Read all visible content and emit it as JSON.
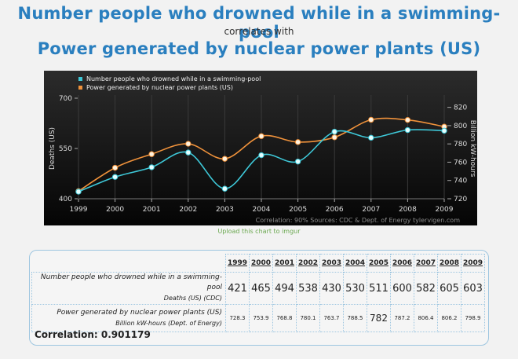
{
  "header": {
    "title1": "Number people who drowned while in a swimming-pool",
    "subtitle": "correlates with",
    "title2": "Power generated by nuclear power plants (US)"
  },
  "chart_data": {
    "type": "line",
    "x": [
      1999,
      2000,
      2001,
      2002,
      2003,
      2004,
      2005,
      2006,
      2007,
      2008,
      2009
    ],
    "series": [
      {
        "name": "Number people who drowned while in a swimming-pool",
        "axis": "left",
        "color": "#3ec8d8",
        "values": [
          421,
          465,
          494,
          538,
          430,
          530,
          511,
          600,
          582,
          605,
          603
        ]
      },
      {
        "name": "Power generated by nuclear power plants (US)",
        "axis": "right",
        "color": "#f0923b",
        "values": [
          728.3,
          753.9,
          768.8,
          780.1,
          763.7,
          788.5,
          782,
          787.2,
          806.4,
          806.2,
          798.9
        ]
      }
    ],
    "ylabel_left": "Deaths (US)",
    "ylabel_right": "Billion kW-hours",
    "ylim_left": [
      400,
      700
    ],
    "yticks_left": [
      400,
      550,
      700
    ],
    "ylim_right": [
      720,
      830
    ],
    "yticks_right": [
      720,
      740,
      760,
      780,
      800,
      820
    ],
    "grid": "vertical",
    "legend": "top-left",
    "footer": "Correlation: 90%   Sources: CDC & Dept. of Energy   tylervigen.com"
  },
  "upload_link": "Upload this chart to imgur",
  "table": {
    "years": [
      "1999",
      "2000",
      "2001",
      "2002",
      "2003",
      "2004",
      "2005",
      "2006",
      "2007",
      "2008",
      "2009"
    ],
    "row1": {
      "label": "Number people who drowned while in a swimming-pool",
      "sub": "Deaths (US) (CDC)",
      "values": [
        "421",
        "465",
        "494",
        "538",
        "430",
        "530",
        "511",
        "600",
        "582",
        "605",
        "603"
      ]
    },
    "row2": {
      "label": "Power generated by nuclear power plants (US)",
      "sub": "Billion kW-hours (Dept. of Energy)",
      "values": [
        "728.3",
        "753.9",
        "768.8",
        "780.1",
        "763.7",
        "788.5",
        "782",
        "787.2",
        "806.4",
        "806.2",
        "798.9"
      ]
    },
    "correlation": "Correlation: 0.901179"
  }
}
